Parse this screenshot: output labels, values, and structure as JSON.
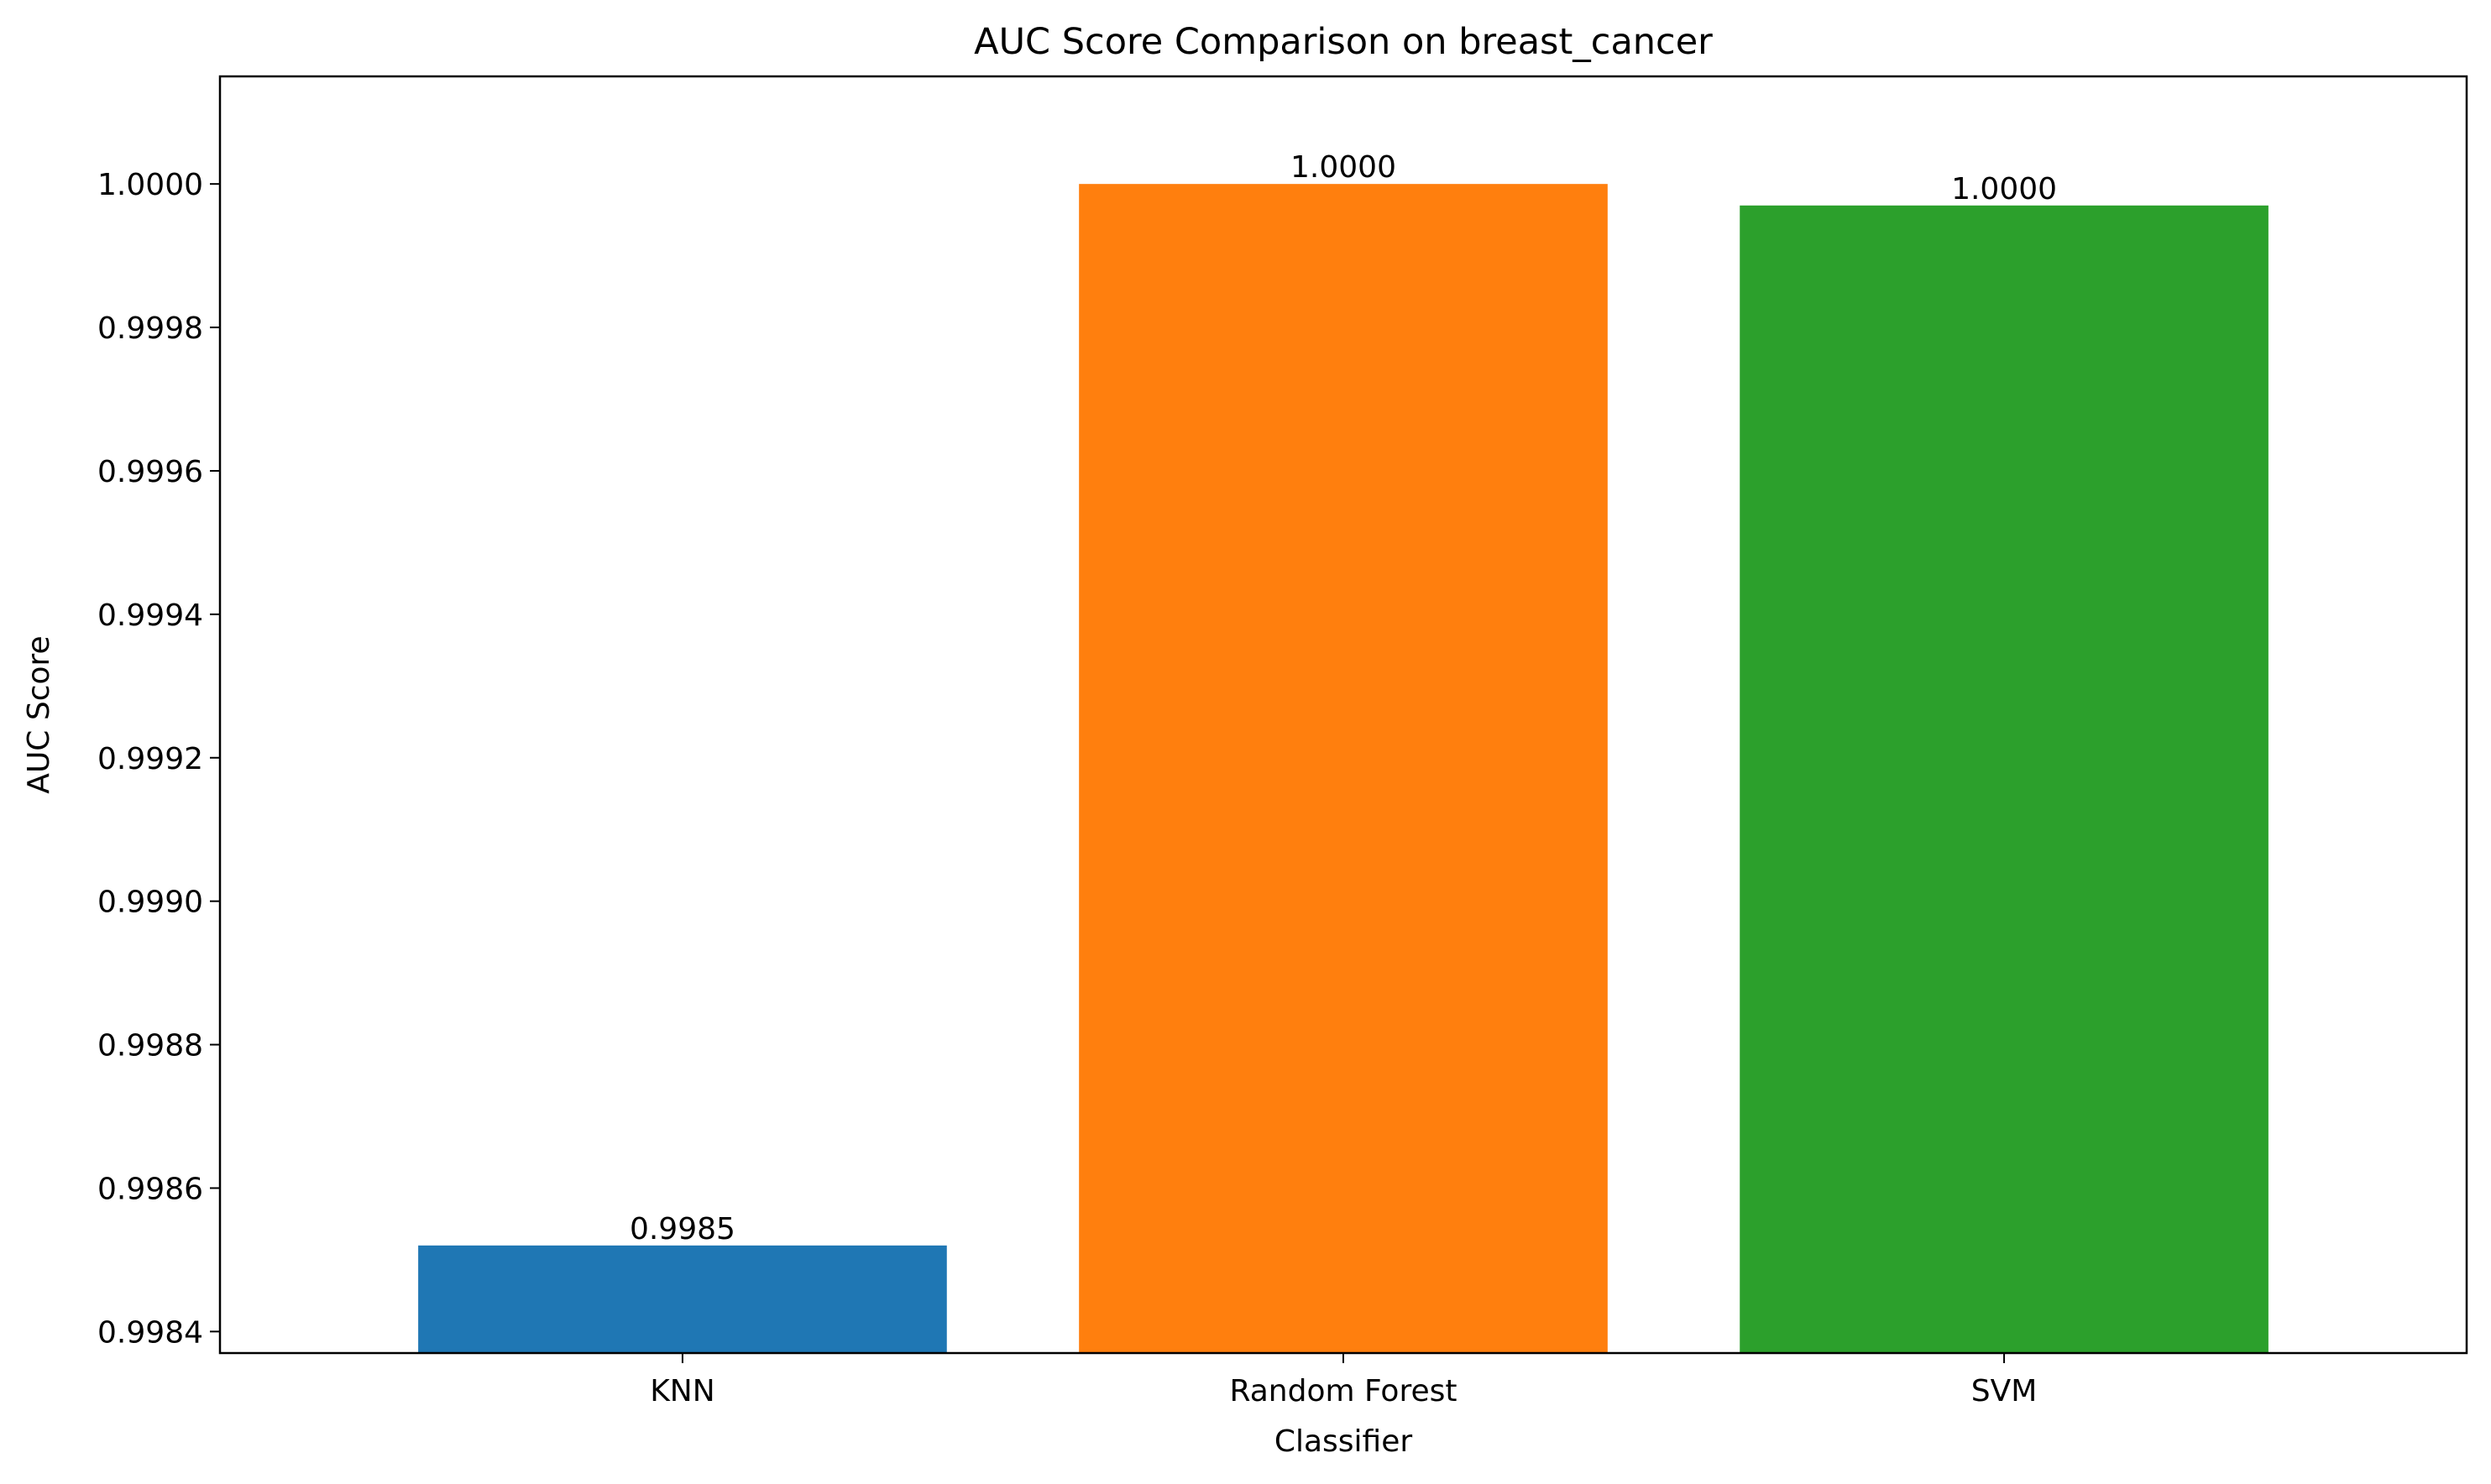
{
  "chart_data": {
    "type": "bar",
    "title": "AUC Score Comparison on breast_cancer",
    "xlabel": "Classifier",
    "ylabel": "AUC Score",
    "categories": [
      "KNN",
      "Random Forest",
      "SVM"
    ],
    "values": [
      0.99852,
      1.0,
      0.99997
    ],
    "value_labels": [
      "0.9985",
      "1.0000",
      "1.0000"
    ],
    "colors": [
      "#1f77b4",
      "#ff7f0e",
      "#2ca02c"
    ],
    "ylim": [
      0.99837,
      1.00015
    ],
    "yticks": [
      0.9984,
      0.9986,
      0.9988,
      0.999,
      0.9992,
      0.9994,
      0.9996,
      0.9998,
      1.0
    ],
    "ytick_labels": [
      "0.9984",
      "0.9986",
      "0.9988",
      "0.9990",
      "0.9992",
      "0.9994",
      "0.9996",
      "0.9998",
      "1.0000"
    ],
    "grid": false,
    "legend": false
  }
}
